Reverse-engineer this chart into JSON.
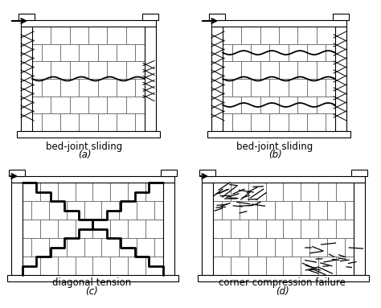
{
  "background_color": "#ffffff",
  "labels": {
    "a": "bed-joint sliding",
    "b": "bed-joint sliding",
    "c": "diagonal tension",
    "d": "corner compression failure"
  },
  "sublabels": {
    "a": "(a)",
    "b": "(b)",
    "c": "(c)",
    "d": "(d)"
  },
  "line_color": "#000000",
  "brick_color": "#ffffff",
  "brick_edge_color": "#555555"
}
